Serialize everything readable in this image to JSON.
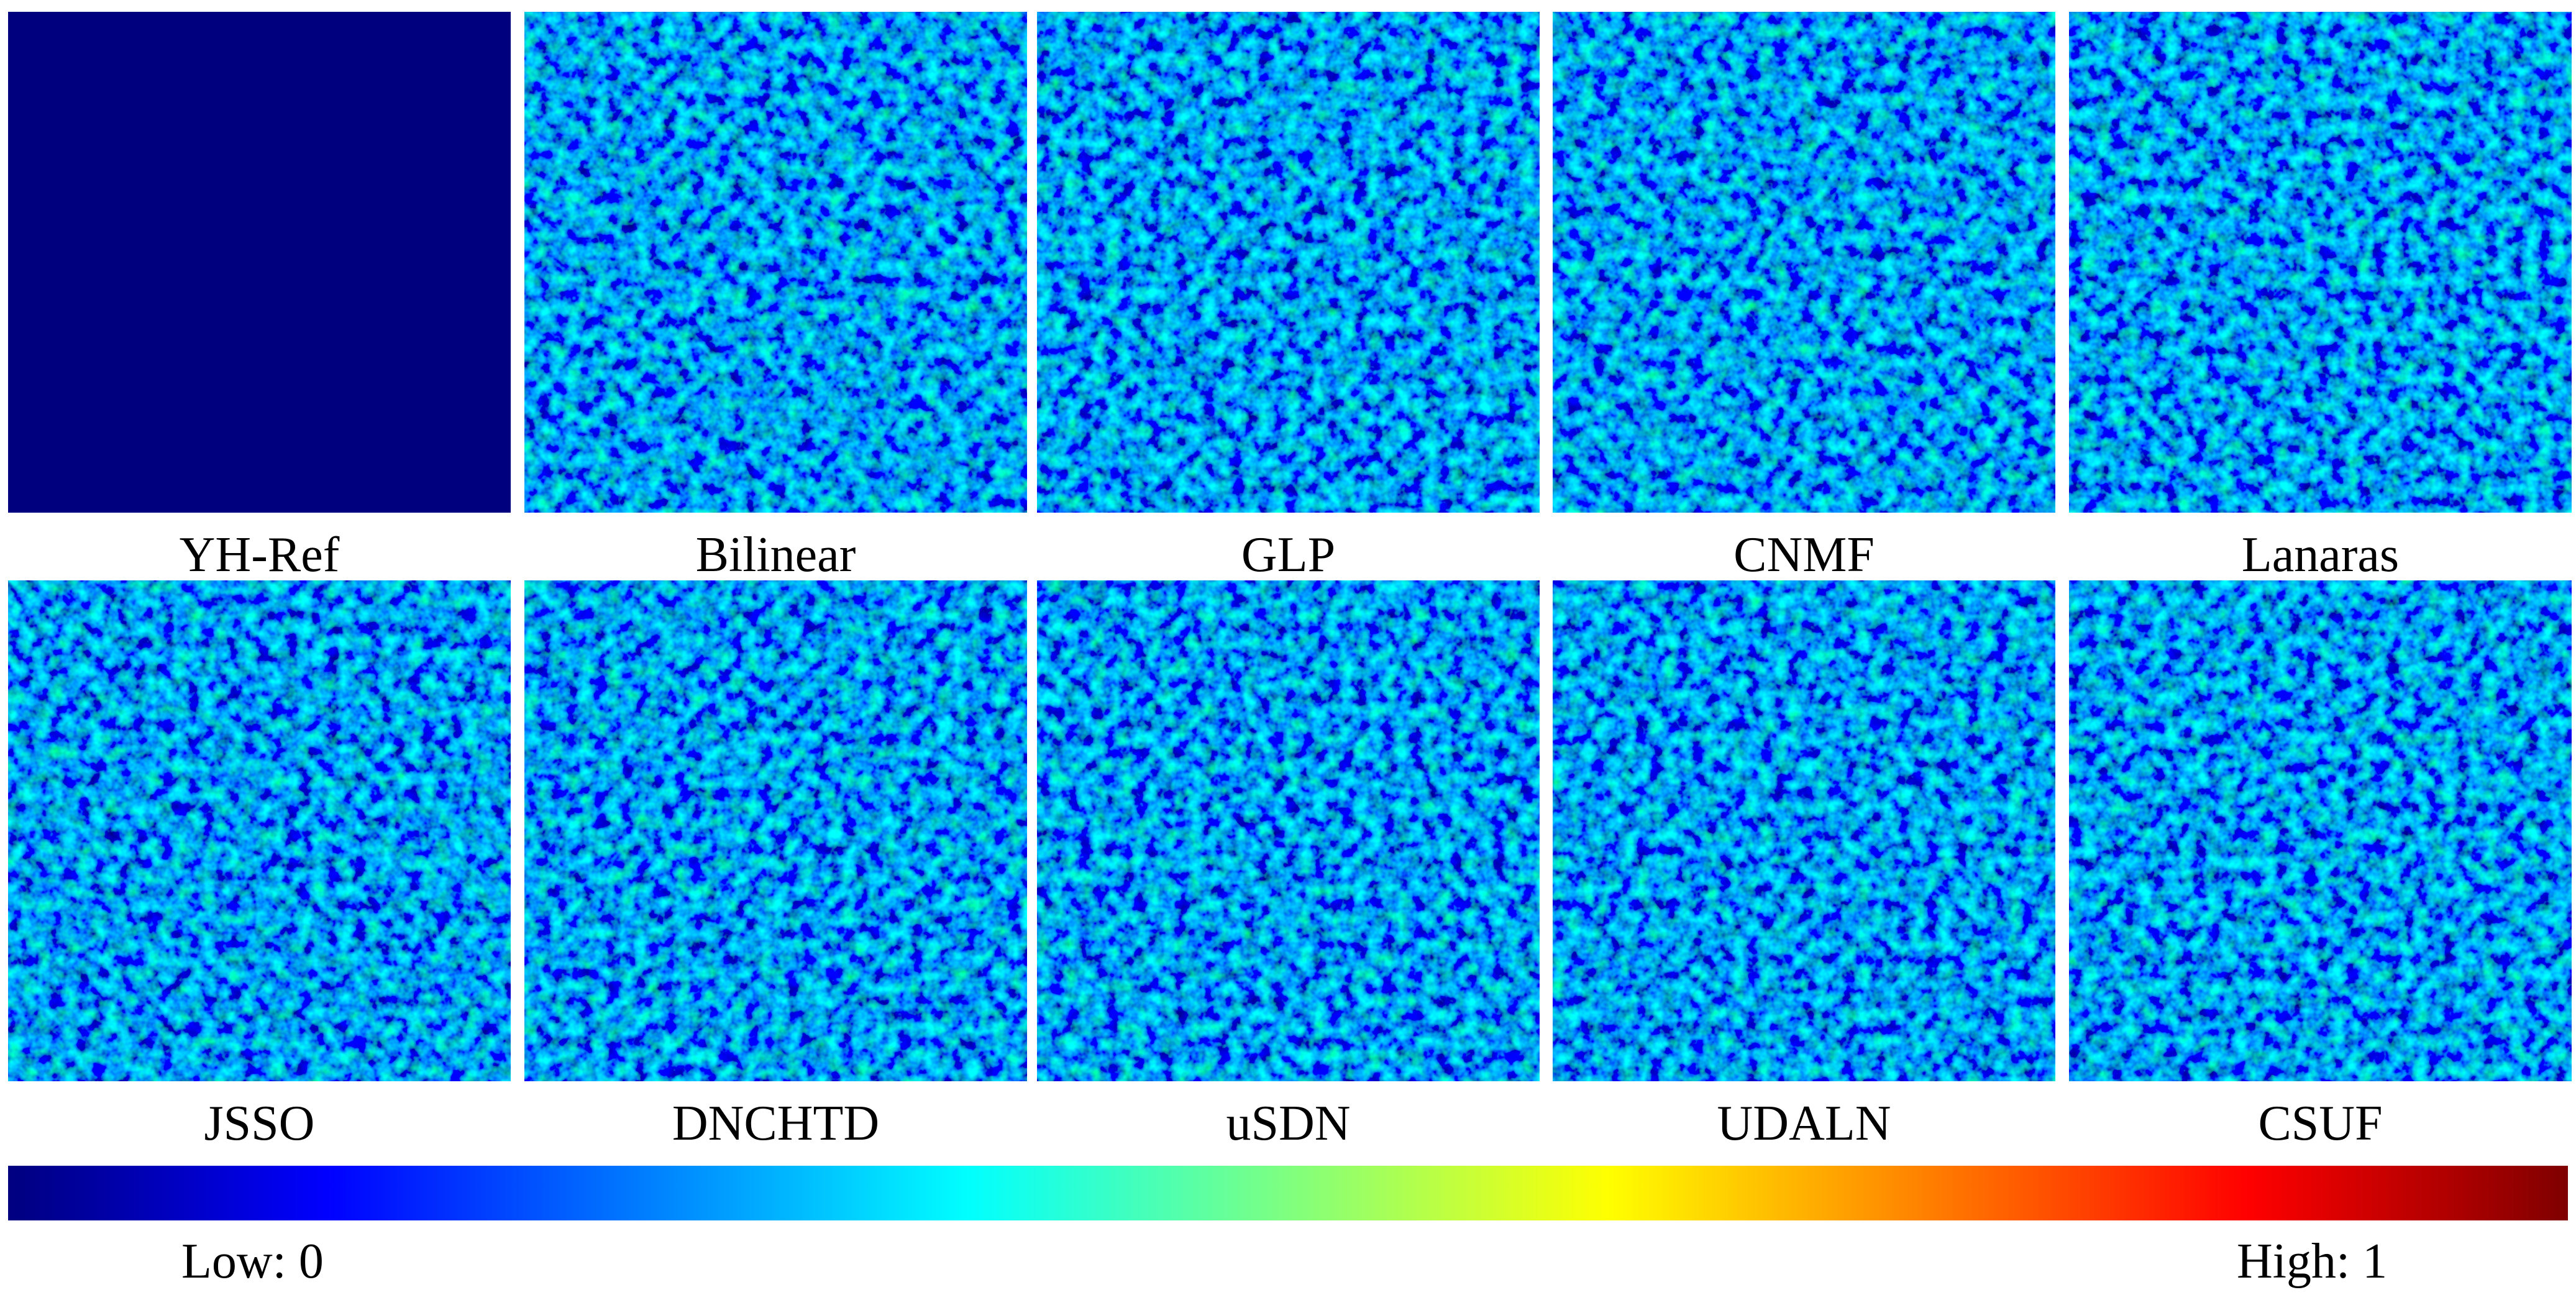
{
  "panels": [
    {
      "label": "YH-Ref"
    },
    {
      "label": "Bilinear"
    },
    {
      "label": "GLP"
    },
    {
      "label": "CNMF"
    },
    {
      "label": "Lanaras"
    },
    {
      "label": "JSSO"
    },
    {
      "label": "DNCHTD"
    },
    {
      "label": "uSDN"
    },
    {
      "label": "UDALN"
    },
    {
      "label": "CSUF"
    }
  ],
  "colorbar": {
    "low_label": "Low: 0",
    "high_label": "High: 1"
  }
}
